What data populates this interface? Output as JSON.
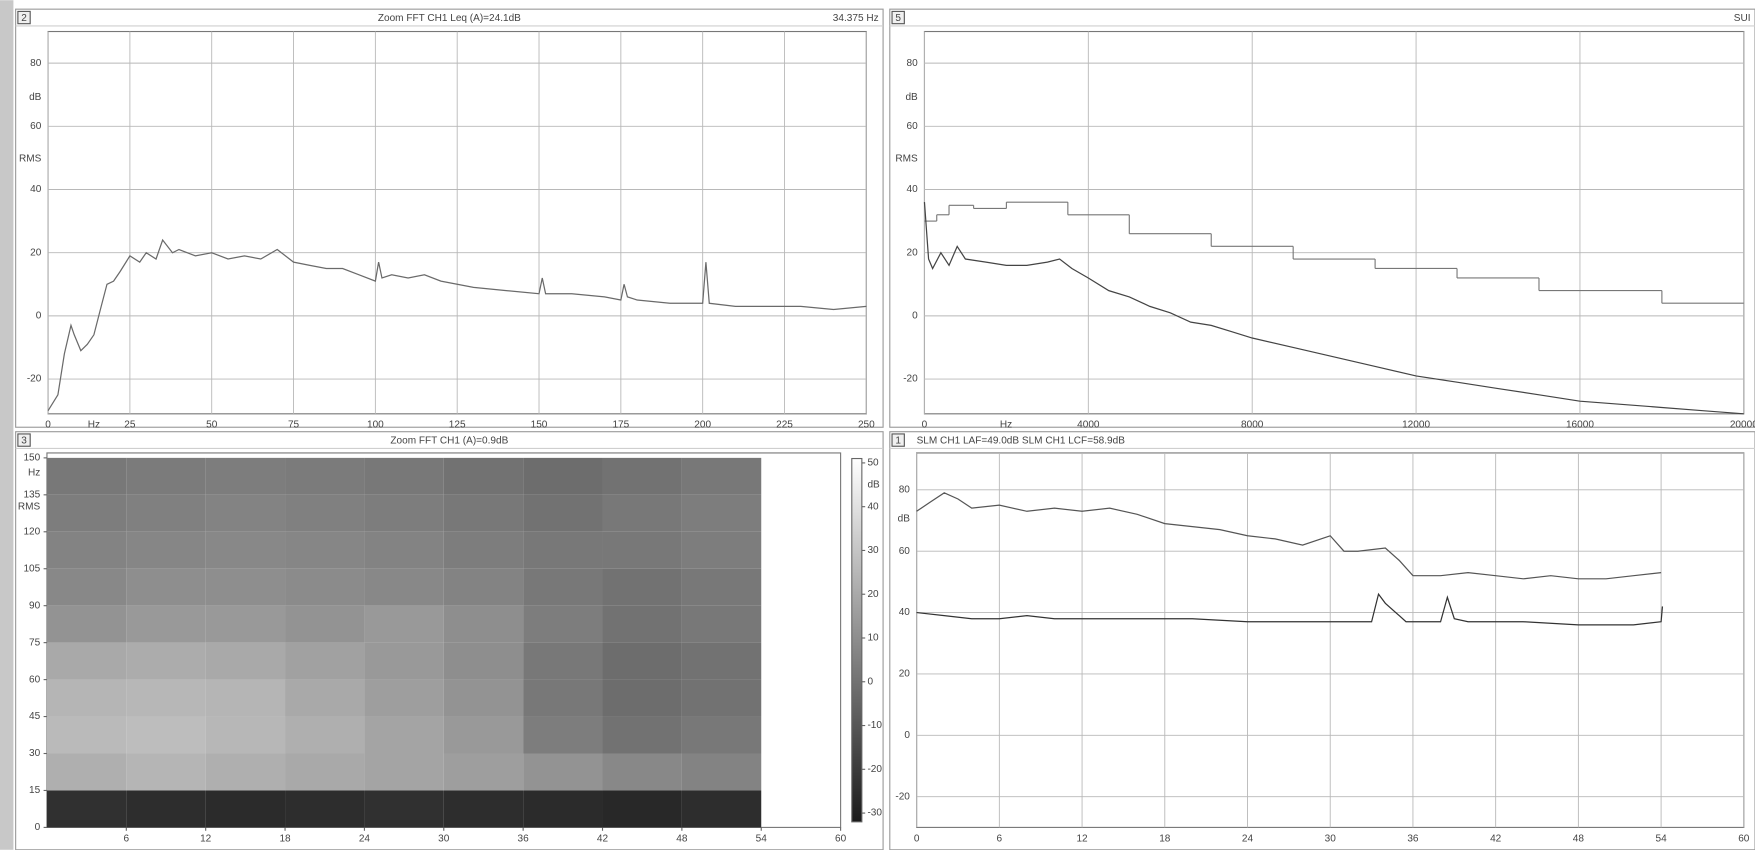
{
  "chart_data": [
    {
      "panel": "2",
      "type": "line",
      "title": "Zoom FFT CH1 Leq (A)=24.1dB",
      "readout": "34.375 Hz",
      "x_unit": "Hz",
      "y_unit": "dB",
      "y_label": "RMS",
      "grid": true,
      "xlim": [
        0,
        250
      ],
      "xticks": [
        0,
        25,
        50,
        75,
        100,
        125,
        150,
        175,
        200,
        225,
        250
      ],
      "ylim": [
        -31,
        90
      ],
      "yticks": [
        -20,
        0,
        20,
        40,
        60,
        80
      ],
      "series": [
        {
          "color": "#6a6a6a",
          "x": [
            0,
            3,
            5,
            7,
            8,
            10,
            12,
            14,
            16,
            18,
            20,
            22,
            25,
            28,
            30,
            33,
            35,
            38,
            40,
            45,
            50,
            55,
            60,
            65,
            70,
            75,
            80,
            85,
            90,
            95,
            100,
            101,
            102,
            105,
            110,
            115,
            120,
            125,
            130,
            140,
            150,
            151,
            152,
            160,
            170,
            175,
            176,
            177,
            180,
            190,
            200,
            201,
            202,
            210,
            220,
            230,
            240,
            250
          ],
          "values": [
            -30,
            -25,
            -12,
            -3,
            -6,
            -11,
            -9,
            -6,
            2,
            10,
            11,
            14,
            19,
            17,
            20,
            18,
            24,
            20,
            21,
            19,
            20,
            18,
            19,
            18,
            21,
            17,
            16,
            15,
            15,
            13,
            11,
            17,
            12,
            13,
            12,
            13,
            11,
            10,
            9,
            8,
            7,
            12,
            7,
            7,
            6,
            5,
            10,
            6,
            5,
            4,
            4,
            17,
            4,
            3,
            3,
            3,
            2,
            3
          ]
        }
      ]
    },
    {
      "panel": "5",
      "type": "line",
      "readout": "SUI",
      "x_unit": "Hz",
      "y_unit": "dB",
      "y_label": "RMS",
      "grid": true,
      "xlim": [
        0,
        20000
      ],
      "xticks": [
        0,
        4000,
        8000,
        12000,
        16000,
        20000
      ],
      "ylim": [
        -31,
        90
      ],
      "yticks": [
        -20,
        0,
        20,
        40,
        60,
        80
      ],
      "series": [
        {
          "color": "#777777",
          "step": true,
          "x": [
            0,
            300,
            600,
            1200,
            2000,
            3500,
            5000,
            7000,
            9000,
            11000,
            13000,
            15000,
            18000
          ],
          "values": [
            30,
            32,
            35,
            34,
            36,
            32,
            26,
            22,
            18,
            15,
            12,
            8,
            4
          ]
        },
        {
          "color": "#444444",
          "x": [
            0,
            100,
            200,
            400,
            600,
            800,
            1000,
            1500,
            2000,
            2500,
            3000,
            3300,
            3600,
            4000,
            4500,
            5000,
            5500,
            6000,
            6500,
            7000,
            7500,
            8000,
            9000,
            10000,
            11000,
            12000,
            13000,
            14000,
            15000,
            16000,
            17000,
            18000,
            19000,
            20000
          ],
          "values": [
            36,
            18,
            15,
            20,
            16,
            22,
            18,
            17,
            16,
            16,
            17,
            18,
            15,
            12,
            8,
            6,
            3,
            1,
            -2,
            -3,
            -5,
            -7,
            -10,
            -13,
            -16,
            -19,
            -21,
            -23,
            -25,
            -27,
            -28,
            -29,
            -30,
            -31
          ]
        }
      ]
    },
    {
      "panel": "3",
      "type": "heatmap",
      "title": "Zoom FFT CH1 (A)=0.9dB",
      "y_unit": "Hz",
      "y_label": "RMS",
      "z_unit": "dB",
      "xlim": [
        0,
        60
      ],
      "xticks": [
        6,
        12,
        18,
        24,
        30,
        36,
        42,
        48,
        54,
        60
      ],
      "ylim": [
        0,
        152
      ],
      "yticks": [
        0,
        15,
        30,
        45,
        60,
        75,
        90,
        105,
        120,
        135,
        150
      ],
      "zlim": [
        -32,
        51
      ],
      "zticks": [
        -30,
        -20,
        -10,
        0,
        10,
        20,
        30,
        40,
        50
      ],
      "x": [
        3,
        9,
        15,
        21,
        27,
        33,
        39,
        45,
        51
      ],
      "y": [
        7.5,
        22.5,
        37.5,
        52.5,
        67.5,
        82.5,
        97.5,
        112.5,
        127.5,
        142.5
      ],
      "values": [
        [
          -24,
          -25,
          -26,
          -25,
          -24,
          -25,
          -26,
          -27,
          -25
        ],
        [
          22,
          24,
          22,
          20,
          18,
          16,
          12,
          8,
          6
        ],
        [
          26,
          27,
          25,
          22,
          18,
          14,
          4,
          0,
          2
        ],
        [
          24,
          25,
          24,
          20,
          16,
          12,
          2,
          -2,
          0
        ],
        [
          20,
          21,
          20,
          17,
          14,
          10,
          2,
          -2,
          0
        ],
        [
          12,
          14,
          14,
          12,
          14,
          10,
          4,
          0,
          2
        ],
        [
          8,
          10,
          10,
          9,
          8,
          6,
          2,
          0,
          2
        ],
        [
          6,
          7,
          8,
          7,
          6,
          4,
          2,
          2,
          4
        ],
        [
          4,
          5,
          6,
          5,
          4,
          2,
          0,
          2,
          4
        ],
        [
          2,
          3,
          4,
          3,
          2,
          0,
          -2,
          0,
          2
        ]
      ]
    },
    {
      "panel": "1",
      "type": "line",
      "title": "SLM CH1 LAF=49.0dB   SLM CH1 LCF=58.9dB",
      "y_unit": "dB",
      "grid": true,
      "xlim": [
        0,
        60
      ],
      "xticks": [
        0,
        6,
        12,
        18,
        24,
        30,
        36,
        42,
        48,
        54,
        60
      ],
      "ylim": [
        -30,
        92
      ],
      "yticks": [
        -20,
        0,
        20,
        40,
        60,
        80
      ],
      "series": [
        {
          "color": "#555555",
          "x": [
            0,
            1,
            2,
            3,
            4,
            6,
            8,
            10,
            12,
            14,
            16,
            18,
            20,
            22,
            24,
            26,
            28,
            30,
            31,
            32,
            34,
            35,
            36,
            38,
            40,
            42,
            44,
            46,
            48,
            50,
            52,
            54
          ],
          "values": [
            73,
            76,
            79,
            77,
            74,
            75,
            73,
            74,
            73,
            74,
            72,
            69,
            68,
            67,
            65,
            64,
            62,
            65,
            60,
            60,
            61,
            57,
            52,
            52,
            53,
            52,
            51,
            52,
            51,
            51,
            52,
            53
          ]
        },
        {
          "color": "#333333",
          "x": [
            0,
            2,
            4,
            6,
            8,
            10,
            12,
            16,
            20,
            24,
            28,
            32,
            33,
            33.5,
            34,
            35,
            35.5,
            37,
            38,
            38.5,
            39,
            40,
            44,
            48,
            52,
            54,
            54.1
          ],
          "values": [
            40,
            39,
            38,
            38,
            39,
            38,
            38,
            38,
            38,
            37,
            37,
            37,
            37,
            46,
            43,
            39,
            37,
            37,
            37,
            45,
            38,
            37,
            37,
            36,
            36,
            37,
            42
          ]
        }
      ]
    }
  ]
}
